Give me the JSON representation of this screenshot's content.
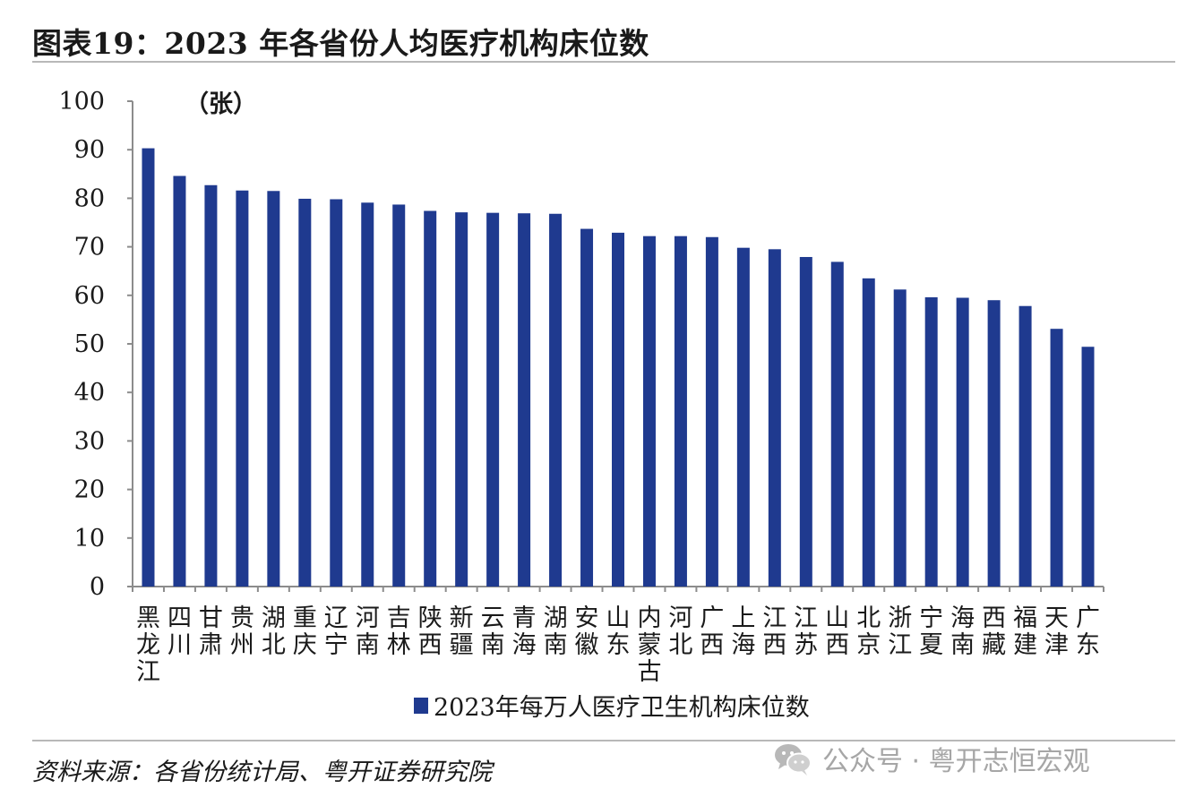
{
  "header": {
    "title": "图表19：2023 年各省份人均医疗机构床位数"
  },
  "footer": {
    "source": "资料来源：各省份统计局、粤开证券研究院",
    "watermark": "公众号 · 粤开志恒宏观"
  },
  "colors": {
    "bar": "#1f3a8f",
    "axis": "#8c8c8c",
    "rule": "#b8b8b8"
  },
  "chart_data": {
    "type": "bar",
    "title": "",
    "xlabel": "",
    "ylabel": "",
    "unit": "（张）",
    "ylim": [
      0,
      100
    ],
    "yticks": [
      0,
      10,
      20,
      30,
      40,
      50,
      60,
      70,
      80,
      90,
      100
    ],
    "grid": false,
    "legend_position": "bottom",
    "categories": [
      "黑龙江",
      "四川",
      "甘肃",
      "贵州",
      "湖北",
      "重庆",
      "辽宁",
      "河南",
      "吉林",
      "陕西",
      "新疆",
      "云南",
      "青海",
      "湖南",
      "安徽",
      "山东",
      "内蒙古",
      "河北",
      "广西",
      "上海",
      "江西",
      "江苏",
      "山西",
      "北京",
      "浙江",
      "宁夏",
      "海南",
      "西藏",
      "福建",
      "天津",
      "广东"
    ],
    "series": [
      {
        "name": "2023年每万人医疗卫生机构床位数",
        "values": [
          90.3,
          84.6,
          82.7,
          81.6,
          81.5,
          79.9,
          79.8,
          79.1,
          78.7,
          77.4,
          77.1,
          77.0,
          76.9,
          76.8,
          73.7,
          72.9,
          72.2,
          72.2,
          72.0,
          69.8,
          69.5,
          67.9,
          66.9,
          63.5,
          61.2,
          59.6,
          59.5,
          59.0,
          57.8,
          53.1,
          49.4
        ]
      }
    ]
  }
}
